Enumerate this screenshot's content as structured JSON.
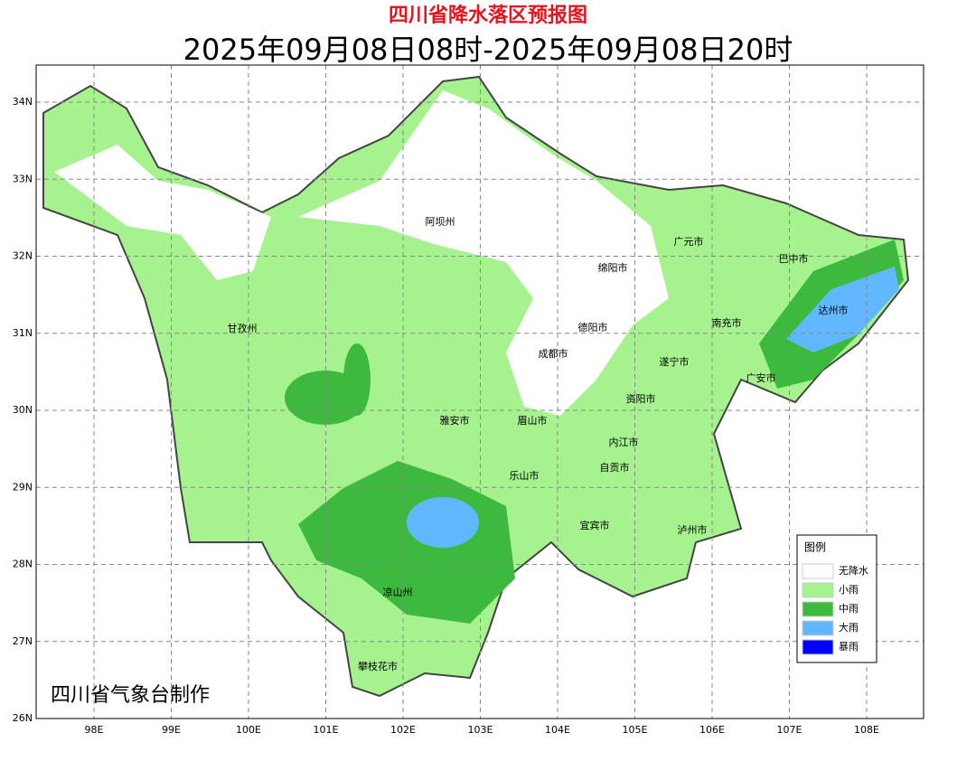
{
  "header": {
    "title": "四川省降水落区预报图",
    "subtitle": "2025年09月08日08时-2025年09月08日20时"
  },
  "lon_labels": [
    "98E",
    "99E",
    "100E",
    "101E",
    "102E",
    "103E",
    "104E",
    "105E",
    "106E",
    "107E",
    "108E"
  ],
  "lat_labels": [
    "34N",
    "33N",
    "32N",
    "31N",
    "30N",
    "29N",
    "28N",
    "27N",
    "26N"
  ],
  "places": [
    "阿坝州",
    "甘孜州",
    "广元市",
    "巴中市",
    "绵阳市",
    "达州市",
    "南充市",
    "德阳市",
    "成都市",
    "遂宁市",
    "广安市",
    "资阳市",
    "雅安市",
    "眉山市",
    "内江市",
    "自贡市",
    "乐山市",
    "宜宾市",
    "泸州市",
    "凉山州",
    "攀枝花市"
  ],
  "legend": {
    "title": "图例",
    "items": [
      {
        "name": "无降水",
        "color": "#ffffff"
      },
      {
        "name": "小雨",
        "color": "#a6f28f"
      },
      {
        "name": "中雨",
        "color": "#3dba3d"
      },
      {
        "name": "大雨",
        "color": "#61b8ff"
      },
      {
        "name": "暴雨",
        "color": "#0000fe"
      }
    ]
  },
  "credit": "四川省气象台制作"
}
